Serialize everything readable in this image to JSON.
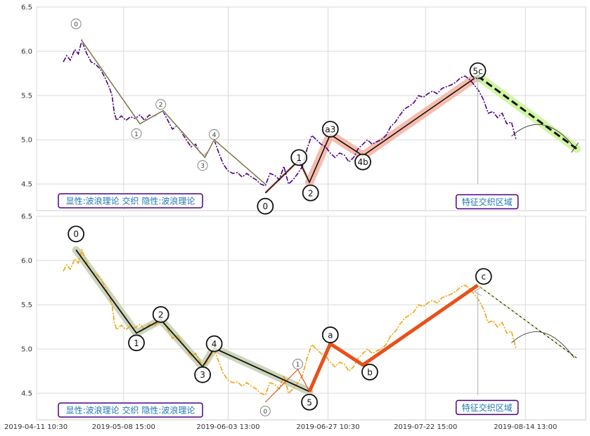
{
  "chart_data": [
    {
      "type": "line",
      "panel": "top",
      "ylim": [
        4.2,
        6.5
      ],
      "yticks": [
        "6.5",
        "6.0",
        "5.5",
        "5.0",
        "4.5"
      ],
      "price_color": "#4b0082",
      "price": [
        [
          0.0,
          5.88
        ],
        [
          0.3,
          5.95
        ],
        [
          0.6,
          5.9
        ],
        [
          1.0,
          6.02
        ],
        [
          1.3,
          5.97
        ],
        [
          1.6,
          6.12
        ],
        [
          2.0,
          5.98
        ],
        [
          2.4,
          5.88
        ],
        [
          2.8,
          5.85
        ],
        [
          3.2,
          5.8
        ],
        [
          3.6,
          5.7
        ],
        [
          4.0,
          5.58
        ],
        [
          4.2,
          5.5
        ],
        [
          4.4,
          5.3
        ],
        [
          4.6,
          5.22
        ],
        [
          5.0,
          5.27
        ],
        [
          5.4,
          5.22
        ],
        [
          5.8,
          5.26
        ],
        [
          6.2,
          5.24
        ],
        [
          6.6,
          5.28
        ],
        [
          7.0,
          5.22
        ],
        [
          7.4,
          5.28
        ],
        [
          7.8,
          5.26
        ],
        [
          8.2,
          5.3
        ],
        [
          8.6,
          5.32
        ],
        [
          9.0,
          5.22
        ],
        [
          9.4,
          5.12
        ],
        [
          9.8,
          5.16
        ],
        [
          10.2,
          5.08
        ],
        [
          10.6,
          5.0
        ],
        [
          11.0,
          4.92
        ],
        [
          11.4,
          4.95
        ],
        [
          11.8,
          4.85
        ],
        [
          12.2,
          4.82
        ],
        [
          12.6,
          4.9
        ],
        [
          13.0,
          5.0
        ],
        [
          13.4,
          4.85
        ],
        [
          13.8,
          4.72
        ],
        [
          14.2,
          4.65
        ],
        [
          14.6,
          4.62
        ],
        [
          15.0,
          4.63
        ],
        [
          15.4,
          4.58
        ],
        [
          15.8,
          4.62
        ],
        [
          16.2,
          4.58
        ],
        [
          16.6,
          4.55
        ],
        [
          17.0,
          4.5
        ],
        [
          17.4,
          4.48
        ],
        [
          17.8,
          4.62
        ],
        [
          18.2,
          4.6
        ],
        [
          18.6,
          4.55
        ],
        [
          19.0,
          4.7
        ],
        [
          19.4,
          4.5
        ],
        [
          19.8,
          4.55
        ],
        [
          20.2,
          4.62
        ],
        [
          20.6,
          4.7
        ],
        [
          21.0,
          4.9
        ],
        [
          21.4,
          5.05
        ],
        [
          21.8,
          5.0
        ],
        [
          22.2,
          4.95
        ],
        [
          22.6,
          4.92
        ],
        [
          23.0,
          4.85
        ],
        [
          23.4,
          4.8
        ],
        [
          23.8,
          4.85
        ],
        [
          24.2,
          4.83
        ],
        [
          24.6,
          4.75
        ],
        [
          25.0,
          4.8
        ],
        [
          25.4,
          4.9
        ],
        [
          25.8,
          4.95
        ],
        [
          26.2,
          5.0
        ],
        [
          26.6,
          4.95
        ],
        [
          27.0,
          4.98
        ],
        [
          27.4,
          5.0
        ],
        [
          27.8,
          5.05
        ],
        [
          28.2,
          5.15
        ],
        [
          28.6,
          5.2
        ],
        [
          29.0,
          5.28
        ],
        [
          29.4,
          5.35
        ],
        [
          29.8,
          5.38
        ],
        [
          30.2,
          5.42
        ],
        [
          30.6,
          5.5
        ],
        [
          31.0,
          5.48
        ],
        [
          31.4,
          5.52
        ],
        [
          31.8,
          5.55
        ],
        [
          32.2,
          5.52
        ],
        [
          32.6,
          5.58
        ],
        [
          33.0,
          5.6
        ],
        [
          33.4,
          5.62
        ],
        [
          33.8,
          5.65
        ],
        [
          34.2,
          5.7
        ],
        [
          34.6,
          5.72
        ],
        [
          35.0,
          5.68
        ],
        [
          35.4,
          5.62
        ],
        [
          35.8,
          5.55
        ],
        [
          36.2,
          5.45
        ],
        [
          36.6,
          5.3
        ],
        [
          37.0,
          5.32
        ],
        [
          37.4,
          5.25
        ],
        [
          37.8,
          5.3
        ],
        [
          38.2,
          5.18
        ],
        [
          38.6,
          5.2
        ],
        [
          39.0,
          5.0
        ]
      ],
      "waves_small": [
        {
          "label": "0",
          "x": 1.6,
          "y": 6.12
        },
        {
          "label": "1",
          "x": 6.6,
          "y": 5.18
        },
        {
          "label": "2",
          "x": 8.6,
          "y": 5.33
        },
        {
          "label": "3",
          "x": 12.2,
          "y": 4.8
        },
        {
          "label": "4",
          "x": 13.0,
          "y": 5.0
        }
      ],
      "small_label_pos": [
        [
          1.1,
          6.31
        ],
        [
          6.3,
          5.07
        ],
        [
          8.4,
          5.4
        ],
        [
          12.0,
          4.71
        ],
        [
          13.0,
          5.06
        ]
      ],
      "small_line_end": [
        17.4,
        4.5
      ],
      "waves_big": [
        {
          "label": "0",
          "x": 17.4,
          "y": 4.4
        },
        {
          "label": "1",
          "x": 20.3,
          "y": 4.77
        },
        {
          "label": "2",
          "x": 21.2,
          "y": 4.52
        },
        {
          "label": "a3",
          "x": 23.0,
          "y": 5.06
        },
        {
          "label": "4b",
          "x": 25.8,
          "y": 4.82
        },
        {
          "label": "5c",
          "x": 35.7,
          "y": 5.72
        }
      ],
      "big_label_pos": [
        [
          17.4,
          4.25
        ],
        [
          20.3,
          4.8
        ],
        [
          21.3,
          4.4
        ],
        [
          23.0,
          5.12
        ],
        [
          25.8,
          4.75
        ],
        [
          35.7,
          5.78
        ]
      ],
      "highlight_segments": [
        [
          21.2,
          4.52
        ],
        [
          23.0,
          5.06
        ],
        [
          25.8,
          4.82
        ],
        [
          35.7,
          5.72
        ]
      ],
      "projection": [
        [
          35.7,
          5.72
        ],
        [
          44.2,
          4.9
        ]
      ],
      "arc_start": [
        38.6,
        5.04
      ],
      "arc_end": [
        44.0,
        4.92
      ],
      "arrow_x": 35.7,
      "arrow_y_from": 4.5,
      "arrow_y_to": 5.7,
      "annotation_box": "特征交织区域",
      "annotation_x": 36.5,
      "annotation_y": 4.3,
      "legend_text": "显性:波浪理论 交织 隐性:波浪理论"
    },
    {
      "type": "line",
      "panel": "bottom",
      "ylim": [
        4.2,
        6.5
      ],
      "yticks": [
        "6.5",
        "6.0",
        "5.5",
        "5.0",
        "4.5"
      ],
      "price_color": "#f0a30a",
      "price": [
        [
          0.0,
          5.88
        ],
        [
          0.3,
          5.95
        ],
        [
          0.6,
          5.9
        ],
        [
          1.0,
          6.02
        ],
        [
          1.3,
          5.97
        ],
        [
          1.6,
          6.12
        ],
        [
          2.0,
          5.98
        ],
        [
          2.4,
          5.88
        ],
        [
          2.8,
          5.85
        ],
        [
          3.2,
          5.8
        ],
        [
          3.6,
          5.7
        ],
        [
          4.0,
          5.58
        ],
        [
          4.2,
          5.5
        ],
        [
          4.4,
          5.3
        ],
        [
          4.6,
          5.22
        ],
        [
          5.0,
          5.27
        ],
        [
          5.4,
          5.22
        ],
        [
          5.8,
          5.26
        ],
        [
          6.2,
          5.24
        ],
        [
          6.6,
          5.28
        ],
        [
          7.0,
          5.22
        ],
        [
          7.4,
          5.28
        ],
        [
          7.8,
          5.26
        ],
        [
          8.2,
          5.3
        ],
        [
          8.6,
          5.32
        ],
        [
          9.0,
          5.22
        ],
        [
          9.4,
          5.12
        ],
        [
          9.8,
          5.16
        ],
        [
          10.2,
          5.08
        ],
        [
          10.6,
          5.0
        ],
        [
          11.0,
          4.92
        ],
        [
          11.4,
          4.95
        ],
        [
          11.8,
          4.85
        ],
        [
          12.2,
          4.82
        ],
        [
          12.6,
          4.9
        ],
        [
          13.0,
          5.0
        ],
        [
          13.4,
          4.85
        ],
        [
          13.8,
          4.72
        ],
        [
          14.2,
          4.65
        ],
        [
          14.6,
          4.62
        ],
        [
          15.0,
          4.63
        ],
        [
          15.4,
          4.58
        ],
        [
          15.8,
          4.62
        ],
        [
          16.2,
          4.58
        ],
        [
          16.6,
          4.55
        ],
        [
          17.0,
          4.5
        ],
        [
          17.4,
          4.48
        ],
        [
          17.8,
          4.62
        ],
        [
          18.2,
          4.6
        ],
        [
          18.6,
          4.55
        ],
        [
          19.0,
          4.7
        ],
        [
          19.4,
          4.5
        ],
        [
          19.8,
          4.55
        ],
        [
          20.2,
          4.62
        ],
        [
          20.6,
          4.7
        ],
        [
          21.0,
          4.9
        ],
        [
          21.4,
          5.05
        ],
        [
          21.8,
          5.0
        ],
        [
          22.2,
          4.95
        ],
        [
          22.6,
          4.92
        ],
        [
          23.0,
          4.85
        ],
        [
          23.4,
          4.8
        ],
        [
          23.8,
          4.85
        ],
        [
          24.2,
          4.83
        ],
        [
          24.6,
          4.75
        ],
        [
          25.0,
          4.8
        ],
        [
          25.4,
          4.9
        ],
        [
          25.8,
          4.95
        ],
        [
          26.2,
          5.0
        ],
        [
          26.6,
          4.95
        ],
        [
          27.0,
          4.98
        ],
        [
          27.4,
          5.0
        ],
        [
          27.8,
          5.05
        ],
        [
          28.2,
          5.15
        ],
        [
          28.6,
          5.2
        ],
        [
          29.0,
          5.28
        ],
        [
          29.4,
          5.35
        ],
        [
          29.8,
          5.38
        ],
        [
          30.2,
          5.42
        ],
        [
          30.6,
          5.5
        ],
        [
          31.0,
          5.48
        ],
        [
          31.4,
          5.52
        ],
        [
          31.8,
          5.55
        ],
        [
          32.2,
          5.52
        ],
        [
          32.6,
          5.58
        ],
        [
          33.0,
          5.6
        ],
        [
          33.4,
          5.62
        ],
        [
          33.8,
          5.65
        ],
        [
          34.2,
          5.7
        ],
        [
          34.6,
          5.72
        ],
        [
          35.0,
          5.68
        ],
        [
          35.4,
          5.62
        ],
        [
          35.8,
          5.55
        ],
        [
          36.2,
          5.45
        ],
        [
          36.6,
          5.3
        ],
        [
          37.0,
          5.32
        ],
        [
          37.4,
          5.25
        ],
        [
          37.8,
          5.3
        ],
        [
          38.2,
          5.18
        ],
        [
          38.6,
          5.2
        ],
        [
          39.0,
          5.0
        ]
      ],
      "waves_big": [
        {
          "label": "0",
          "x": 1.1,
          "y": 6.12
        },
        {
          "label": "1",
          "x": 6.3,
          "y": 5.18
        },
        {
          "label": "2",
          "x": 8.4,
          "y": 5.33
        },
        {
          "label": "3",
          "x": 12.0,
          "y": 4.8
        },
        {
          "label": "4",
          "x": 13.0,
          "y": 5.01
        },
        {
          "label": "5",
          "x": 21.2,
          "y": 4.52
        }
      ],
      "big_label_pos": [
        [
          1.1,
          6.3
        ],
        [
          6.3,
          5.07
        ],
        [
          8.4,
          5.39
        ],
        [
          12.0,
          4.71
        ],
        [
          13.0,
          5.06
        ],
        [
          21.2,
          4.4
        ]
      ],
      "small_line": [
        [
          17.4,
          4.4
        ],
        [
          20.2,
          4.77
        ],
        [
          21.2,
          4.52
        ]
      ],
      "small_label_pos": [
        [
          17.4,
          4.3
        ],
        [
          20.2,
          4.83
        ]
      ],
      "small_labels": [
        "0",
        "1"
      ],
      "highlight_segments": [
        [
          21.2,
          4.52
        ],
        [
          23.0,
          5.06
        ],
        [
          25.8,
          4.82
        ],
        [
          35.7,
          5.72
        ]
      ],
      "orange_labels": [
        {
          "label": "a",
          "x": 23.0,
          "y": 5.16
        },
        {
          "label": "b",
          "x": 26.4,
          "y": 4.74
        },
        {
          "label": "c",
          "x": 36.2,
          "y": 5.82
        }
      ],
      "projection": [
        [
          35.7,
          5.72
        ],
        [
          44.2,
          4.9
        ]
      ],
      "arc_start": [
        38.6,
        5.07
      ],
      "arc_end": [
        44.0,
        4.9
      ],
      "arrow_x": 35.7,
      "arrow_y_from": 4.48,
      "arrow_y_to": 5.65,
      "annotation_box": "特征交织区域",
      "annotation_x": 36.5,
      "annotation_y": 4.34,
      "legend_text": "显性:波浪理论 交织 隐性:波浪理论"
    }
  ],
  "x_ticks": [
    {
      "label": "2019-04-11 10:30",
      "x": -2.3
    },
    {
      "label": "2019-05-08 15:00",
      "x": 5.2
    },
    {
      "label": "2019-06-03 13:00",
      "x": 14.2
    },
    {
      "label": "2019-06-27 10:30",
      "x": 22.8
    },
    {
      "label": "2019-07-22 15:00",
      "x": 31.2
    },
    {
      "label": "2019-08-14 13:00",
      "x": 39.8
    }
  ],
  "x_range": [
    -2.3,
    45.0
  ]
}
